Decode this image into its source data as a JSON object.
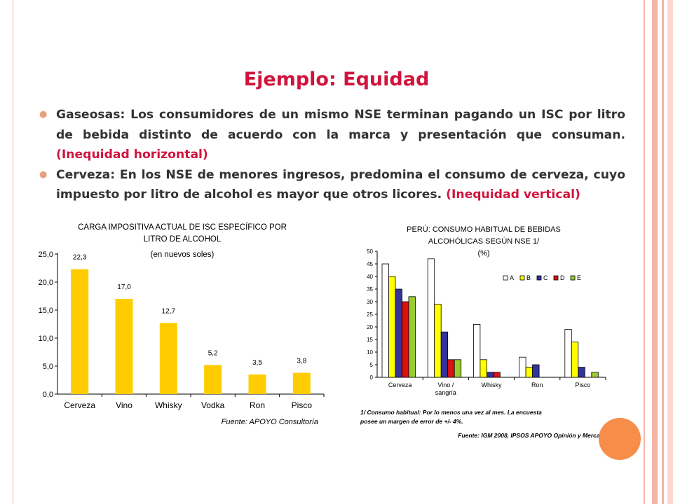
{
  "slide": {
    "title": "Ejemplo: Equidad",
    "bullets": [
      {
        "text": "Gaseosas: Los consumidores de un mismo NSE terminan pagando un ISC por litro de bebida distinto de acuerdo con la marca y presentación que consuman.",
        "highlight": "(Inequidad horizontal)"
      },
      {
        "text": "Cerveza: En los NSE de menores ingresos, predomina el consumo de cerveza, cuyo impuesto por litro de alcohol es mayor que otros licores.",
        "highlight": "(Inequidad vertical)"
      }
    ],
    "colors": {
      "title": "#d0143c",
      "frame": "#f4b4a6",
      "accent_circle": "#f68d48"
    }
  },
  "chart_data": [
    {
      "type": "bar",
      "title": [
        "CARGA IMPOSITIVA ACTUAL DE ISC ESPECÍFICO POR",
        "LITRO DE ALCOHOL"
      ],
      "subtitle": "(en nuevos soles)",
      "categories": [
        "Cerveza",
        "Vino",
        "Whisky",
        "Vodka",
        "Ron",
        "Pisco"
      ],
      "values": [
        22.3,
        17.0,
        12.7,
        5.2,
        3.5,
        3.8
      ],
      "value_labels": [
        "22,3",
        "17,0",
        "12,7",
        "5,2",
        "3,5",
        "3,8"
      ],
      "ylim": [
        0,
        25
      ],
      "yticks": [
        "0,0",
        "5,0",
        "10,0",
        "15,0",
        "20,0",
        "25,0"
      ],
      "ytick_values": [
        0,
        5,
        10,
        15,
        20,
        25
      ],
      "bar_color": "#ffcc00",
      "source": "Fuente: APOYO Consultoría"
    },
    {
      "type": "bar",
      "title": [
        "PERÚ: CONSUMO HABITUAL DE BEBIDAS",
        "ALCOHÓLICAS SEGÚN NSE 1/",
        "(%)"
      ],
      "categories": [
        [
          "Cerveza"
        ],
        [
          "Vino /",
          "sangría"
        ],
        [
          "Whisky"
        ],
        [
          "Ron"
        ],
        [
          "Pisco"
        ]
      ],
      "series": [
        {
          "name": "A",
          "color": "#ffffff",
          "values": [
            45,
            47,
            21,
            8,
            19
          ]
        },
        {
          "name": "B",
          "color": "#ffff00",
          "values": [
            40,
            29,
            7,
            4,
            14
          ]
        },
        {
          "name": "C",
          "color": "#333399",
          "values": [
            35,
            18,
            2,
            5,
            4
          ]
        },
        {
          "name": "D",
          "color": "#dd1111",
          "values": [
            30,
            7,
            2,
            0,
            0
          ]
        },
        {
          "name": "E",
          "color": "#99cc33",
          "values": [
            32,
            7,
            0,
            0,
            2
          ]
        }
      ],
      "ylim": [
        0,
        50
      ],
      "yticks": [
        "0",
        "5",
        "10",
        "15",
        "20",
        "25",
        "30",
        "35",
        "40",
        "45",
        "50"
      ],
      "ytick_values": [
        0,
        5,
        10,
        15,
        20,
        25,
        30,
        35,
        40,
        45,
        50
      ],
      "legend_position": "top-right",
      "note": [
        "1/ Consumo habitual: Por lo menos una vez al mes. La encuesta",
        "posee un margen de error de +/- 4%."
      ],
      "source": "Fuente: IGM 2008, IPSOS APOYO Opinión y Mercado"
    }
  ]
}
